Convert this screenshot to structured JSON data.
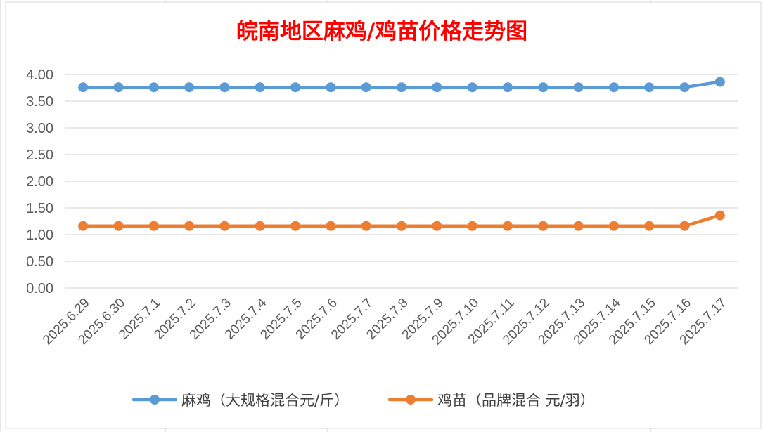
{
  "chart_data": {
    "type": "line",
    "title": "皖南地区麻鸡/鸡苗价格走势图",
    "xlabel": "",
    "ylabel": "",
    "ylim": [
      0,
      4
    ],
    "ytick_step": 0.5,
    "yticks": [
      "0.00",
      "0.50",
      "1.00",
      "1.50",
      "2.00",
      "2.50",
      "3.00",
      "3.50",
      "4.00"
    ],
    "categories": [
      "2025.6.29",
      "2025.6.30",
      "2025.7.1",
      "2025.7.2",
      "2025.7.3",
      "2025.7.4",
      "2025.7.5",
      "2025.7.6",
      "2025.7.7",
      "2025.7.8",
      "2025.7.9",
      "2025.7.10",
      "2025.7.11",
      "2025.7.12",
      "2025.7.13",
      "2025.7.14",
      "2025.7.15",
      "2025.7.16",
      "2025.7.17"
    ],
    "series": [
      {
        "name": "麻鸡（大规格混合元/斤）",
        "color": "#5B9BD5",
        "values": [
          3.76,
          3.76,
          3.76,
          3.76,
          3.76,
          3.76,
          3.76,
          3.76,
          3.76,
          3.76,
          3.76,
          3.76,
          3.76,
          3.76,
          3.76,
          3.76,
          3.76,
          3.76,
          3.86
        ]
      },
      {
        "name": "鸡苗（品牌混合 元/羽）",
        "color": "#ED7D31",
        "values": [
          1.16,
          1.16,
          1.16,
          1.16,
          1.16,
          1.16,
          1.16,
          1.16,
          1.16,
          1.16,
          1.16,
          1.16,
          1.16,
          1.16,
          1.16,
          1.16,
          1.16,
          1.16,
          1.36
        ]
      }
    ],
    "grid": true,
    "legend_position": "bottom",
    "title_color": "#FF0000"
  }
}
